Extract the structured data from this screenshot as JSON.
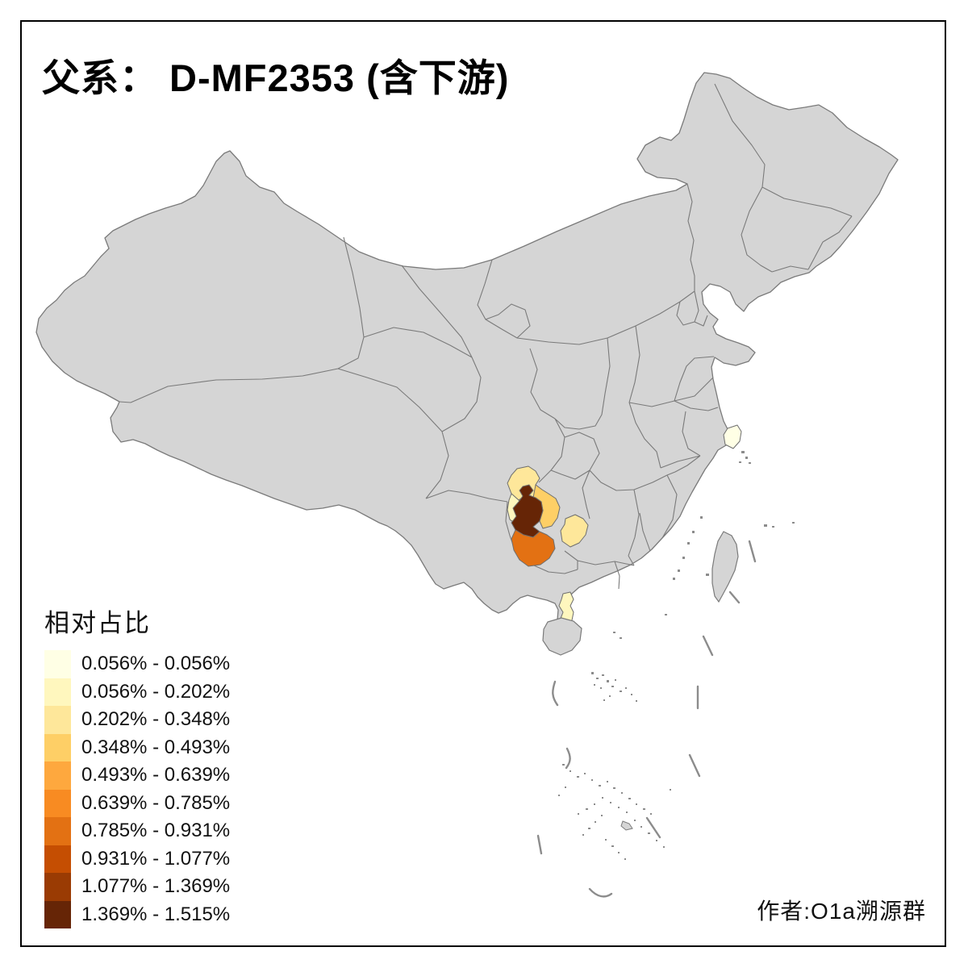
{
  "title": "父系： D-MF2353 (含下游)",
  "attribution": "作者:O1a溯源群",
  "legend": {
    "title": "相对占比"
  },
  "chart_data": {
    "type": "choropleth",
    "subtype": "china-prefecture-map",
    "title": "父系： D-MF2353 (含下游)",
    "legend_title": "相对占比",
    "legend_position": "bottom-left",
    "attribution": "作者:O1a溯源群",
    "bins": [
      {
        "label": "0.056% - 0.056%",
        "color": "#FFFFE5"
      },
      {
        "label": "0.056% - 0.202%",
        "color": "#FFF7BE"
      },
      {
        "label": "0.202% - 0.348%",
        "color": "#FEE79A"
      },
      {
        "label": "0.348% - 0.493%",
        "color": "#FECF66"
      },
      {
        "label": "0.493% - 0.639%",
        "color": "#FEA83E"
      },
      {
        "label": "0.639% - 0.785%",
        "color": "#F88B22"
      },
      {
        "label": "0.785% - 0.931%",
        "color": "#E37113"
      },
      {
        "label": "0.931% - 1.077%",
        "color": "#C54E02"
      },
      {
        "label": "1.077% - 1.369%",
        "color": "#9A3B03"
      },
      {
        "label": "1.369% - 1.515%",
        "color": "#662506"
      }
    ],
    "colored_regions": [
      {
        "id": "shanghai",
        "bin": 1
      },
      {
        "id": "leizhou-peninsula-zhanjiang",
        "bin": 2
      },
      {
        "id": "south-sichuan-north",
        "bin": 3
      },
      {
        "id": "south-sichuan-west",
        "bin": 2
      },
      {
        "id": "northwest-guizhou",
        "bin": 10
      },
      {
        "id": "north-guizhou",
        "bin": 4
      },
      {
        "id": "west-hunan-east-guizhou",
        "bin": 3
      },
      {
        "id": "west-central-guizhou",
        "bin": 7
      }
    ]
  },
  "map": {
    "land_fill": "#D5D5D5",
    "border_color": "#7A7A7A",
    "island_mark_color": "#8C8C8C",
    "sea_color": "#FFFFFF",
    "frame_color": "#000000"
  }
}
